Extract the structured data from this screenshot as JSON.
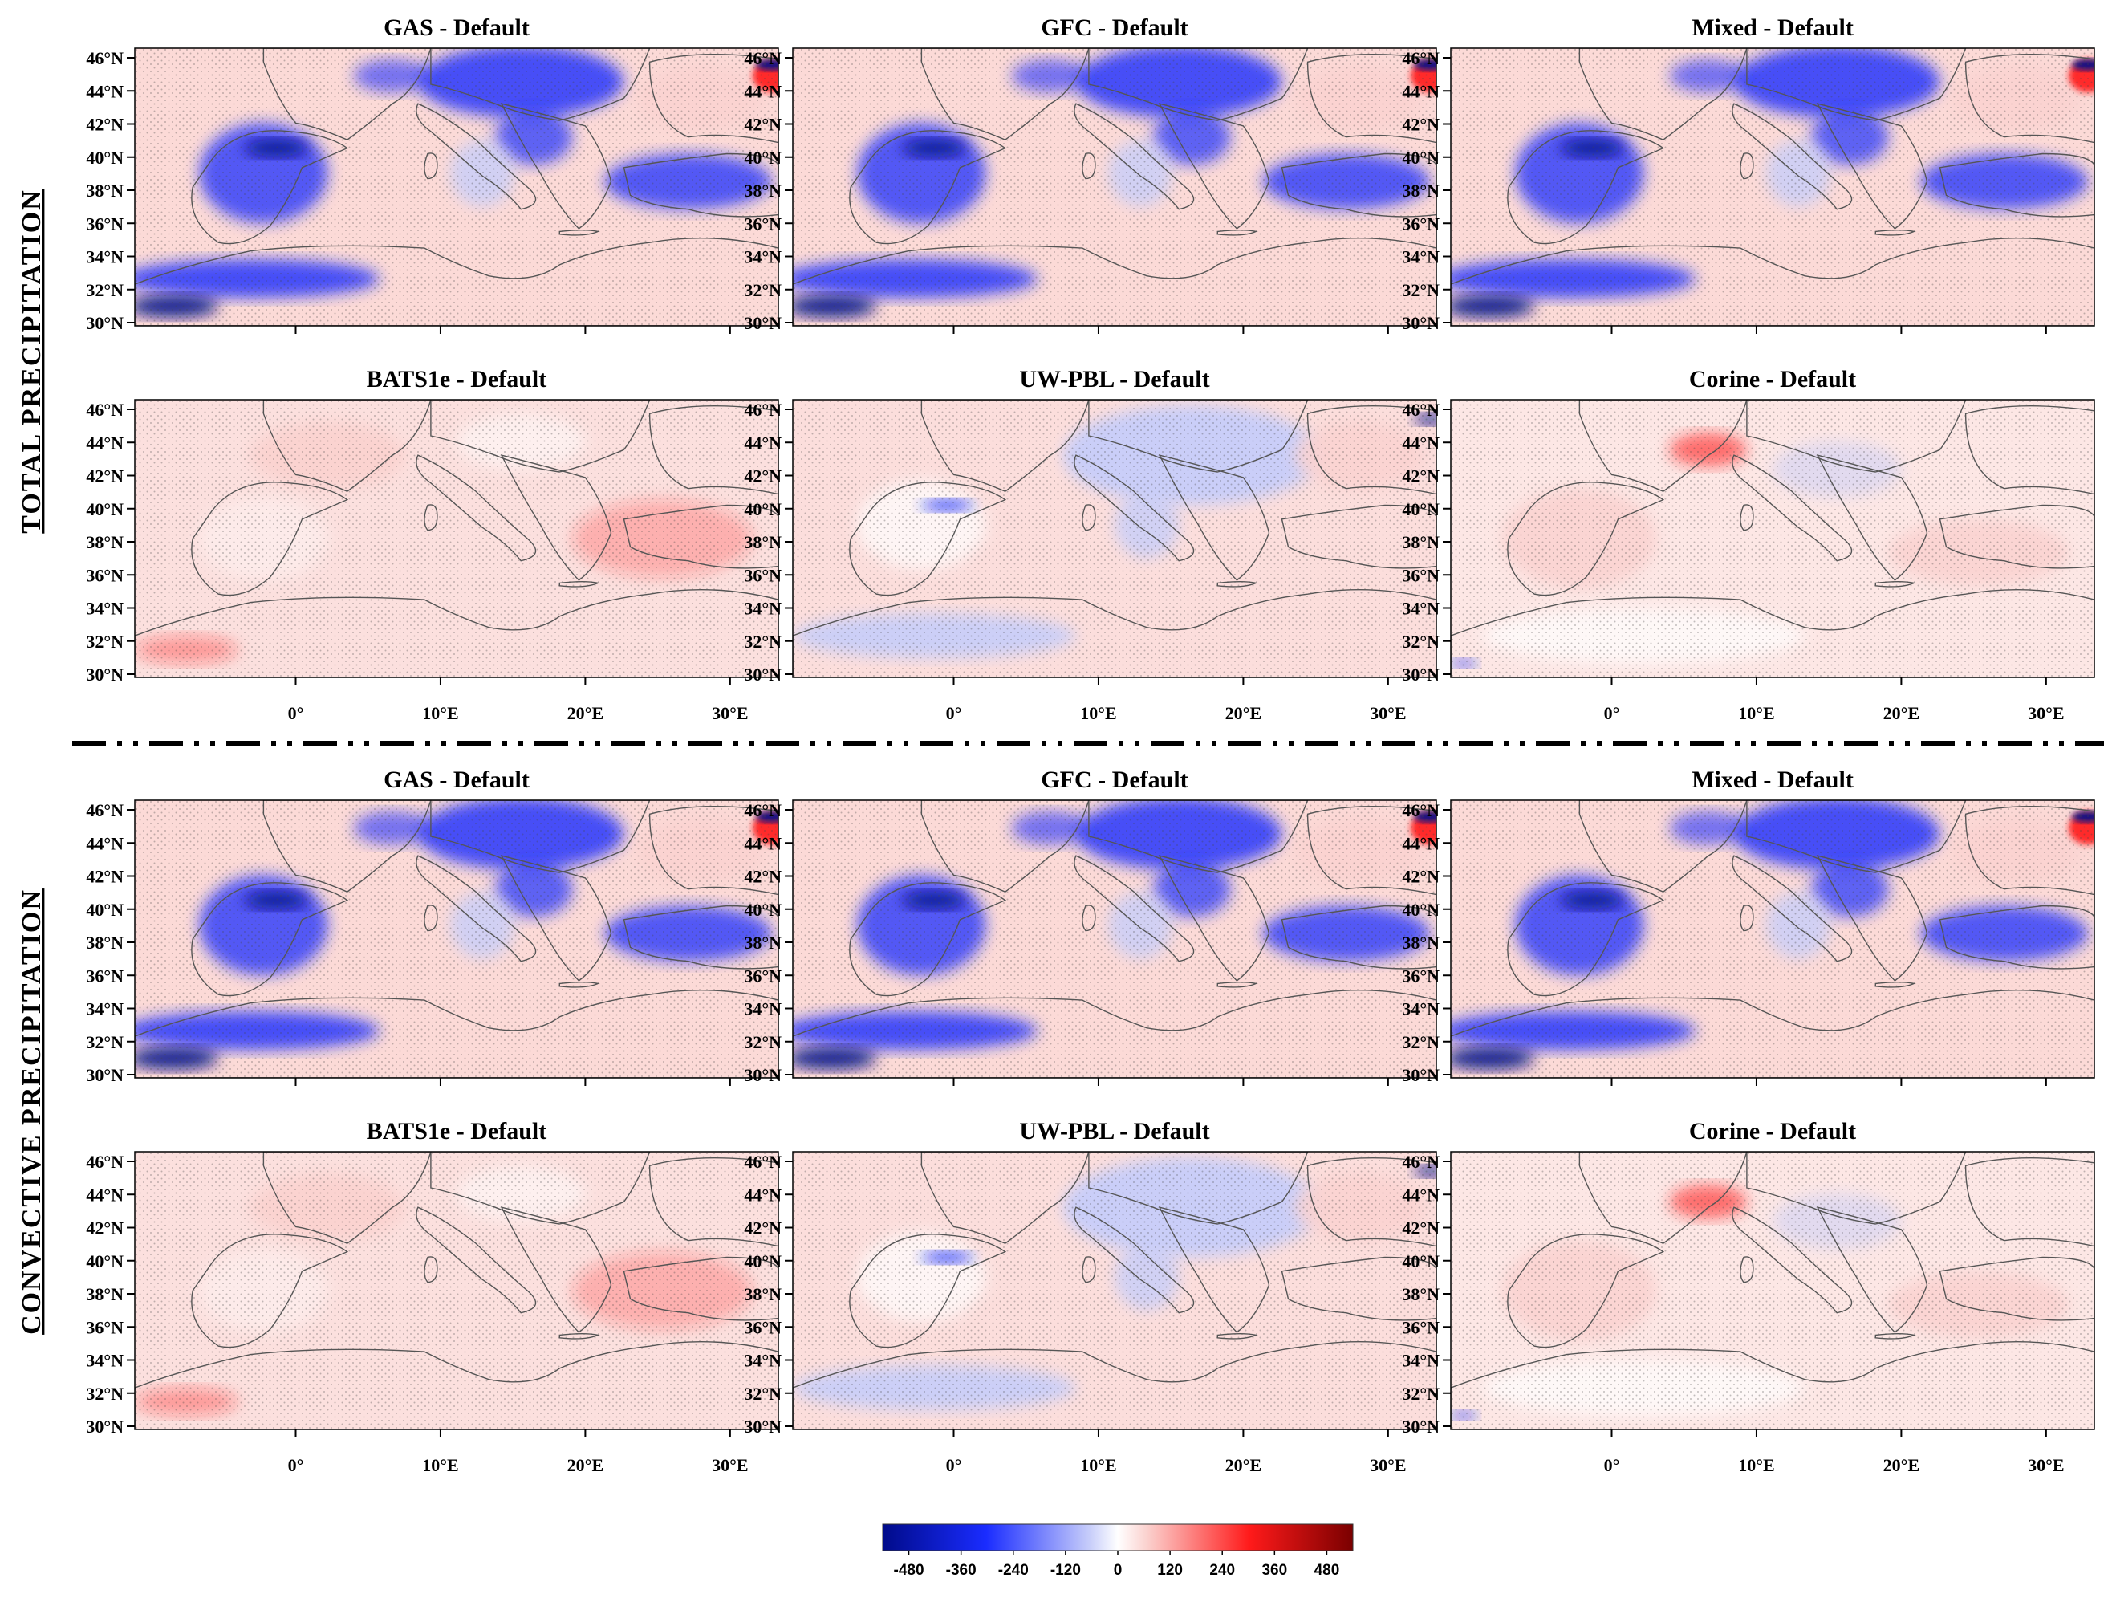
{
  "sections": [
    {
      "label": "TOTAL PRECIPITATION"
    },
    {
      "label": "CONVECTIVE PRECIPITATION"
    }
  ],
  "panels": [
    {
      "title": "GAS - Default",
      "pattern": "wet"
    },
    {
      "title": "GFC - Default",
      "pattern": "wet"
    },
    {
      "title": "Mixed - Default",
      "pattern": "wet"
    },
    {
      "title": "BATS1e - Default",
      "pattern": "dry"
    },
    {
      "title": "UW-PBL - Default",
      "pattern": "mild"
    },
    {
      "title": "Corine - Default",
      "pattern": "mixed"
    },
    {
      "title": "GAS - Default",
      "pattern": "wet"
    },
    {
      "title": "GFC - Default",
      "pattern": "wet"
    },
    {
      "title": "Mixed - Default",
      "pattern": "wet"
    },
    {
      "title": "BATS1e - Default",
      "pattern": "dry"
    },
    {
      "title": "UW-PBL - Default",
      "pattern": "mild"
    },
    {
      "title": "Corine - Default",
      "pattern": "mixed"
    }
  ],
  "lat_ticks": [
    "46°N",
    "44°N",
    "42°N",
    "40°N",
    "38°N",
    "36°N",
    "34°N",
    "32°N",
    "30°N"
  ],
  "lon_ticks": [
    "0°",
    "10°E",
    "20°E",
    "30°E"
  ],
  "colorbar": {
    "ticks": [
      "-480",
      "-360",
      "-240",
      "-120",
      "0",
      "120",
      "240",
      "360",
      "480"
    ],
    "min": -540,
    "max": 540,
    "colors": {
      "negative_strong": "#000b8a",
      "negative_mid": "#1a2cff",
      "negative_light": "#c7cdfa",
      "zero": "#ffffff",
      "positive_light": "#fbd3d0",
      "positive_mid": "#ff1a1a",
      "positive_strong": "#7a0000"
    }
  }
}
